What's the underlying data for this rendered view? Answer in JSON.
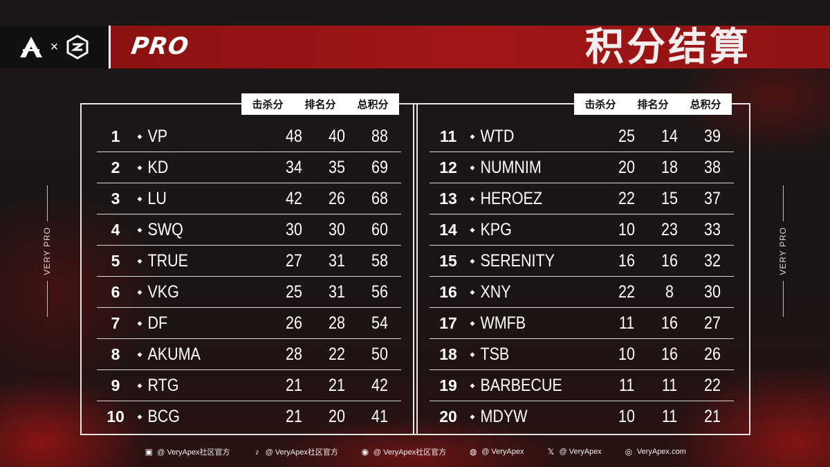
{
  "header": {
    "title": "积分结算",
    "pro_logo": "PRO",
    "logo_left": "apex-logo-icon",
    "logo_times": "×",
    "logo_right": "partner-logo-icon"
  },
  "side_text": "VERY PRO",
  "columns": [
    "击杀分",
    "排名分",
    "总积分"
  ],
  "left_rows": [
    {
      "rank": "1",
      "team": "VP",
      "kill": "48",
      "place": "40",
      "total": "88"
    },
    {
      "rank": "2",
      "team": "KD",
      "kill": "34",
      "place": "35",
      "total": "69"
    },
    {
      "rank": "3",
      "team": "LU",
      "kill": "42",
      "place": "26",
      "total": "68"
    },
    {
      "rank": "4",
      "team": "SWQ",
      "kill": "30",
      "place": "30",
      "total": "60"
    },
    {
      "rank": "5",
      "team": "TRUE",
      "kill": "27",
      "place": "31",
      "total": "58"
    },
    {
      "rank": "6",
      "team": "VKG",
      "kill": "25",
      "place": "31",
      "total": "56"
    },
    {
      "rank": "7",
      "team": "DF",
      "kill": "26",
      "place": "28",
      "total": "54"
    },
    {
      "rank": "8",
      "team": "AKUMA",
      "kill": "28",
      "place": "22",
      "total": "50"
    },
    {
      "rank": "9",
      "team": "RTG",
      "kill": "21",
      "place": "21",
      "total": "42"
    },
    {
      "rank": "10",
      "team": "BCG",
      "kill": "21",
      "place": "20",
      "total": "41"
    }
  ],
  "right_rows": [
    {
      "rank": "11",
      "team": "WTD",
      "kill": "25",
      "place": "14",
      "total": "39"
    },
    {
      "rank": "12",
      "team": "NUMNIM",
      "kill": "20",
      "place": "18",
      "total": "38"
    },
    {
      "rank": "13",
      "team": "HEROEZ",
      "kill": "22",
      "place": "15",
      "total": "37"
    },
    {
      "rank": "14",
      "team": "KPG",
      "kill": "10",
      "place": "23",
      "total": "33"
    },
    {
      "rank": "15",
      "team": "SERENITY",
      "kill": "16",
      "place": "16",
      "total": "32"
    },
    {
      "rank": "16",
      "team": "XNY",
      "kill": "22",
      "place": "8",
      "total": "30"
    },
    {
      "rank": "17",
      "team": "WMFB",
      "kill": "11",
      "place": "16",
      "total": "27"
    },
    {
      "rank": "18",
      "team": "TSB",
      "kill": "10",
      "place": "16",
      "total": "26"
    },
    {
      "rank": "19",
      "team": "BARBECUE",
      "kill": "11",
      "place": "11",
      "total": "22"
    },
    {
      "rank": "20",
      "team": "MDYW",
      "kill": "10",
      "place": "11",
      "total": "21"
    }
  ],
  "footer": [
    {
      "icon": "bilibili-icon",
      "glyph": "▣",
      "text": "@ VeryApex社区官方"
    },
    {
      "icon": "tiktok-icon",
      "glyph": "♪",
      "text": "@ VeryApex社区官方"
    },
    {
      "icon": "weibo-icon",
      "glyph": "◉",
      "text": "@ VeryApex社区官方"
    },
    {
      "icon": "discord-icon",
      "glyph": "◍",
      "text": "@ VeryApex"
    },
    {
      "icon": "x-icon",
      "glyph": "𝕏",
      "text": "@ VeryApex"
    },
    {
      "icon": "website-icon",
      "glyph": "◎",
      "text": "VeryApex.com"
    }
  ],
  "colors": {
    "accent": "#a31616",
    "panel_border": "#e6e6e6",
    "background": "#1a1414"
  }
}
